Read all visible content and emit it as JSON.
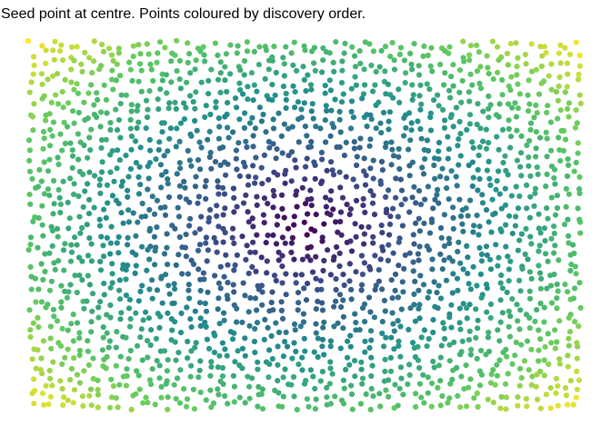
{
  "chart_data": {
    "type": "scatter",
    "title": "Seed point at centre. Points coloured by discovery order.",
    "color_encoding": "discovery order",
    "colormap": [
      "#440154",
      "#3b528b",
      "#21918c",
      "#5ec962",
      "#fde725"
    ],
    "seed": {
      "x": 0.5,
      "y": 0.5
    },
    "point_count": 2200,
    "xlim": [
      0,
      1
    ],
    "ylim": [
      0,
      1
    ],
    "axes_visible": false,
    "grid": false,
    "legend": "none",
    "point_color_order": "increasing with distance from the seed point (rectangular spread)"
  }
}
